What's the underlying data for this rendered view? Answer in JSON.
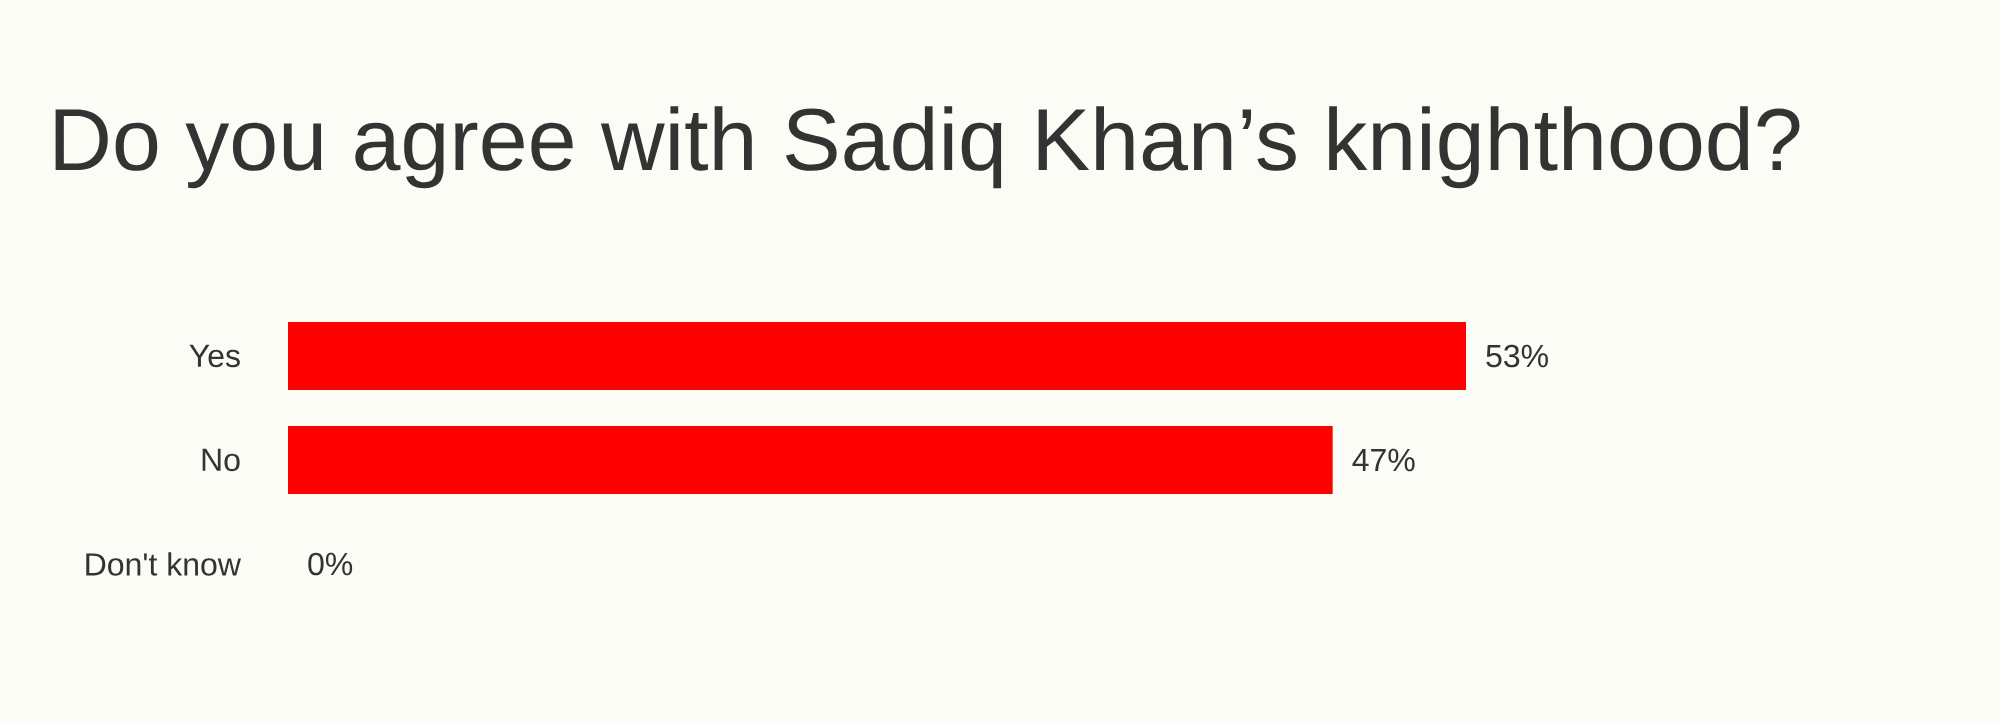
{
  "chart_data": {
    "type": "bar",
    "orientation": "horizontal",
    "title": "Do you agree with Sadiq Khan’s knighthood?",
    "categories": [
      "Yes",
      "No",
      "Don't know"
    ],
    "values": [
      53,
      47,
      0
    ],
    "value_labels": [
      "53%",
      "47%",
      "0%"
    ],
    "color": "#ff0000"
  }
}
